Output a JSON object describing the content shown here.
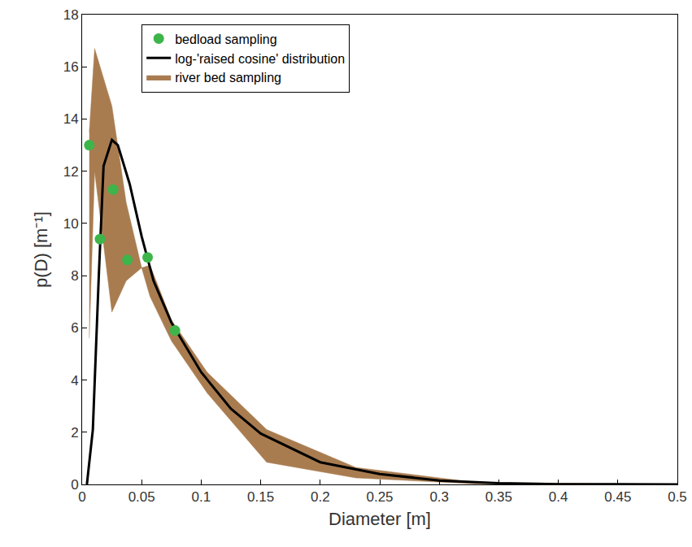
{
  "chart_data": {
    "type": "line",
    "x_label": "Diameter [m]",
    "y_label": "p(D) [m⁻¹]",
    "xlim": [
      0,
      0.5
    ],
    "ylim": [
      0,
      18
    ],
    "xticks": [
      0,
      0.05,
      0.1,
      0.15,
      0.2,
      0.25,
      0.3,
      0.35,
      0.4,
      0.45,
      0.5
    ],
    "yticks": [
      0,
      2,
      4,
      6,
      8,
      10,
      12,
      14,
      16,
      18
    ],
    "legend": "upper left",
    "grid": false,
    "series": [
      {
        "name": "river bed sampling",
        "type": "band",
        "color": "#a97c50",
        "x": [
          0.006,
          0.0105,
          0.025,
          0.037,
          0.05,
          0.057,
          0.075,
          0.105,
          0.155,
          0.23,
          0.33,
          0.5
        ],
        "upper": [
          13.5,
          16.7,
          14.5,
          10.8,
          8.3,
          8.4,
          6.3,
          4.3,
          2.1,
          0.65,
          0.08,
          0
        ],
        "lower": [
          5.6,
          12.0,
          6.6,
          7.8,
          8.3,
          7.2,
          5.5,
          3.5,
          0.85,
          0.25,
          0.02,
          0
        ]
      },
      {
        "name": "log-'raised cosine' distribution",
        "type": "line",
        "color": "#000000",
        "line_style": "solid",
        "x": [
          0.004,
          0.009,
          0.014,
          0.018,
          0.025,
          0.03,
          0.04,
          0.05,
          0.06,
          0.075,
          0.1,
          0.125,
          0.15,
          0.2,
          0.25,
          0.3,
          0.35,
          0.4,
          0.5
        ],
        "values": [
          0,
          2.1,
          8,
          12.2,
          13.2,
          13.0,
          11.5,
          9.5,
          7.8,
          6.2,
          4.3,
          2.9,
          1.95,
          0.85,
          0.4,
          0.15,
          0.05,
          0.01,
          0
        ]
      },
      {
        "name": "bedload sampling",
        "type": "scatter",
        "color": "#3db54a",
        "marker": "circle",
        "x": [
          0.006,
          0.015,
          0.026,
          0.038,
          0.055,
          0.078
        ],
        "values": [
          13.0,
          9.4,
          11.3,
          8.6,
          8.7,
          5.9
        ]
      }
    ]
  }
}
